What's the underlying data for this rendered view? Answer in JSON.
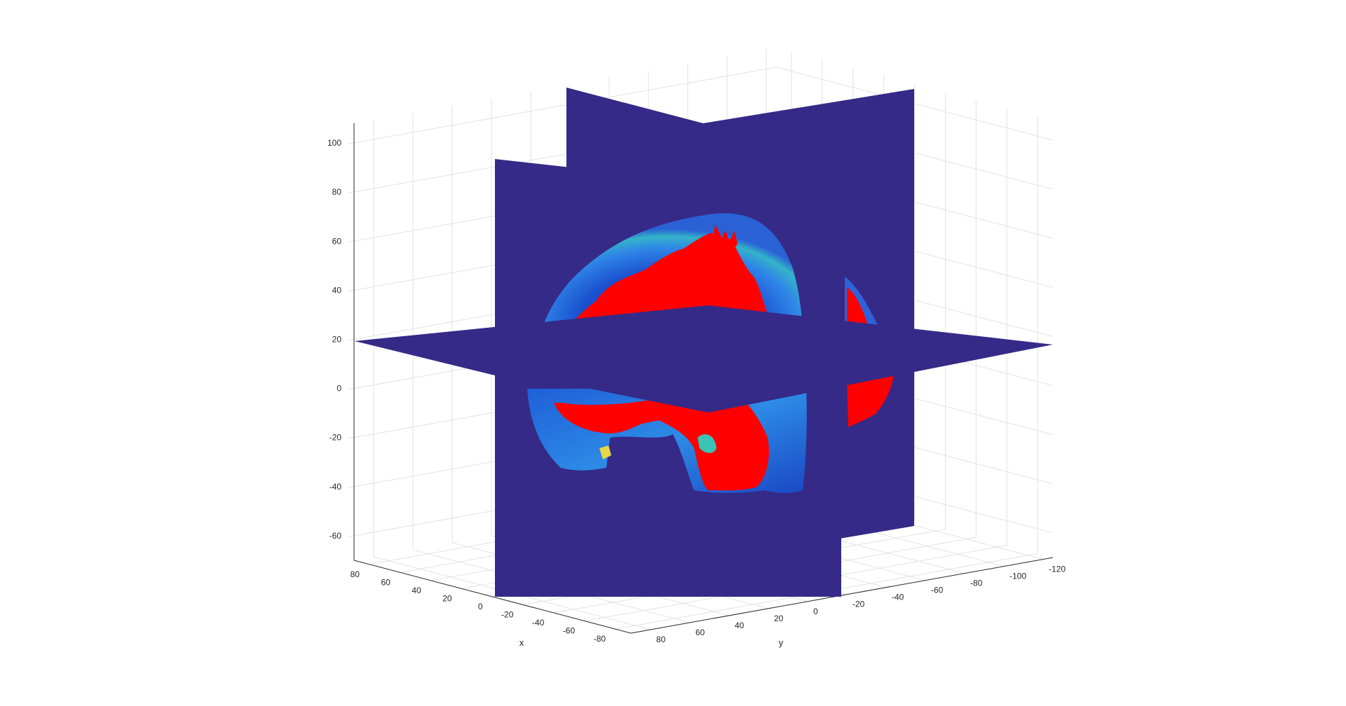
{
  "chart_data": {
    "type": "3d-slice",
    "title": "",
    "axes": {
      "x": {
        "label": "x",
        "range": [
          -90,
          90
        ],
        "ticks": [
          80,
          60,
          40,
          20,
          0,
          -20,
          -40,
          -60,
          -80
        ]
      },
      "y": {
        "label": "y",
        "range": [
          -125,
          90
        ],
        "ticks": [
          80,
          60,
          40,
          20,
          0,
          -20,
          -40,
          -60,
          -80,
          -100,
          -120
        ]
      },
      "z": {
        "label": "",
        "range": [
          -70,
          108
        ],
        "ticks": [
          100,
          80,
          60,
          40,
          20,
          0,
          -20,
          -40,
          -60
        ]
      }
    },
    "grid": true,
    "slice_planes": [
      {
        "name": "x-slice",
        "orientation": "x",
        "position": 0
      },
      {
        "name": "y-slice",
        "orientation": "y",
        "position": 0
      },
      {
        "name": "z-slice",
        "orientation": "z",
        "position": 18
      }
    ],
    "colormap": "parula",
    "overlay_color": "#ff0000",
    "background_plane_color": "#352a87"
  }
}
